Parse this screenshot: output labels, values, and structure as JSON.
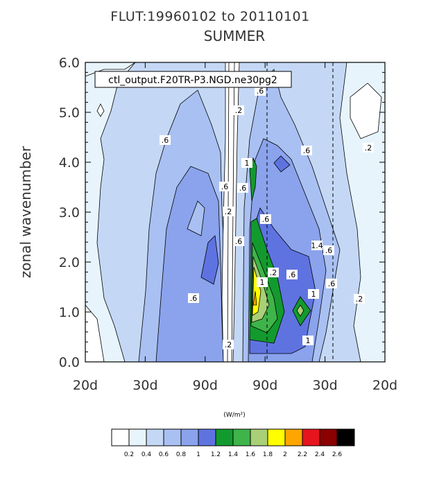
{
  "chart_data": {
    "type": "contour",
    "title_line1": "FLUT:19960102 to 20110101",
    "title_line2": "SUMMER",
    "ylabel": "zonal wavenumber",
    "xlabel": "",
    "inset_label": "ctl_output.F20TR-P3.NGD.ne30pg2",
    "x_tick_labels": [
      "20d",
      "30d",
      "90d",
      "90d",
      "30d",
      "20d"
    ],
    "y_tick_labels": [
      "0.0",
      "1.0",
      "2.0",
      "3.0",
      "4.0",
      "5.0",
      "6.0"
    ],
    "ylim": [
      0,
      6
    ],
    "dashed_lines_at_tick_index": [
      3,
      4
    ],
    "colorbar": {
      "units": "(W/m²)",
      "levels": [
        "0.2",
        "0.4",
        "0.6",
        "0.8",
        "1",
        "1.2",
        "1.4",
        "1.6",
        "1.8",
        "2",
        "2.2",
        "2.4",
        "2.6"
      ],
      "colors": [
        "#ffffff",
        "#e8f4fc",
        "#c4d8f6",
        "#a9c0f2",
        "#8aa3ec",
        "#5f73e0",
        "#139a2e",
        "#3fb44a",
        "#a9cf77",
        "#ffff00",
        "#ffa500",
        "#e6141e",
        "#8b0000",
        "#000000"
      ]
    },
    "contour_labels": [
      ".2",
      ".6",
      ".6",
      ".6",
      ".2",
      ".6",
      ".6",
      "1",
      ".2",
      ".6",
      ".6",
      ".2",
      "1",
      "1.4",
      "1",
      ".6",
      ".6",
      ".2",
      "1",
      ".6",
      ".6",
      ".2"
    ]
  }
}
